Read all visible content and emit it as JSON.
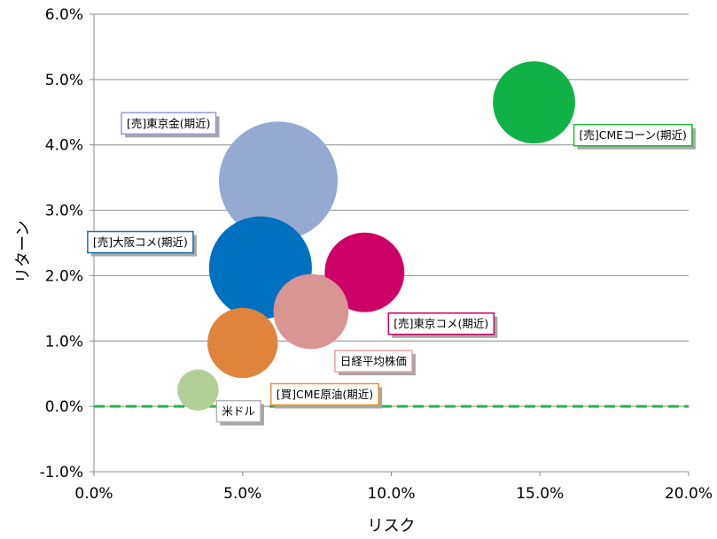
{
  "chart_data": {
    "type": "bubble",
    "xlabel": "リスク",
    "ylabel": "リターン",
    "xlim": [
      0,
      20
    ],
    "ylim": [
      -1,
      6
    ],
    "x_ticks": [
      "0.0%",
      "5.0%",
      "10.0%",
      "15.0%",
      "20.0%"
    ],
    "y_ticks": [
      "-1.0%",
      "0.0%",
      "1.0%",
      "2.0%",
      "3.0%",
      "4.0%",
      "5.0%",
      "6.0%"
    ],
    "grid": "horizontal",
    "reference_line": {
      "y": 0,
      "color": "#2db24a",
      "style": "dashed"
    },
    "series": [
      {
        "name": "[売]東京金(期近)",
        "x": 6.2,
        "y": 3.45,
        "size": 100,
        "color": "#95a9d3",
        "label_border": "#9999e0"
      },
      {
        "name": "[売]大阪コメ(期近)",
        "x": 5.6,
        "y": 2.12,
        "size": 75,
        "color": "#0070c0",
        "label_border": "#1f6ea8"
      },
      {
        "name": "[売]東京コメ(期近)",
        "x": 9.1,
        "y": 2.05,
        "size": 45,
        "color": "#cc0066",
        "label_border": "#cc0066"
      },
      {
        "name": "日経平均株価",
        "x": 7.3,
        "y": 1.45,
        "size": 40,
        "color": "#d99594",
        "label_border": "#e6a3a3"
      },
      {
        "name": "[買]CME原油(期近)",
        "x": 5.0,
        "y": 0.97,
        "size": 35,
        "color": "#e0843c",
        "label_border": "#f0902f"
      },
      {
        "name": "米ドル",
        "x": 3.5,
        "y": 0.25,
        "size": 12,
        "color": "#b3cf95",
        "label_border": "#b3b3b3"
      },
      {
        "name": "[売]CMEコーン(期近)",
        "x": 14.8,
        "y": 4.65,
        "size": 48,
        "color": "#10b246",
        "label_border": "#22bb33"
      }
    ]
  }
}
